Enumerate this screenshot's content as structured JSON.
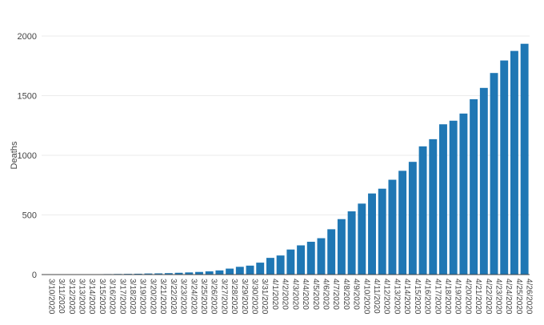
{
  "chart_data": {
    "type": "bar",
    "title": "",
    "xlabel": "",
    "ylabel": "Deaths",
    "ylim": [
      0,
      2000
    ],
    "yticks": [
      0,
      500,
      1000,
      1500,
      2000
    ],
    "grid": "horizontal",
    "bar_color": "#1f77b4",
    "categories": [
      "3/10/2020",
      "3/11/2020",
      "3/12/2020",
      "3/13/2020",
      "3/14/2020",
      "3/15/2020",
      "3/16/2020",
      "3/17/2020",
      "3/18/2020",
      "3/19/2020",
      "3/20/2020",
      "3/21/2020",
      "3/22/2020",
      "3/23/2020",
      "3/24/2020",
      "3/25/2020",
      "3/26/2020",
      "3/27/2020",
      "3/28/2020",
      "3/29/2020",
      "3/30/2020",
      "3/31/2020",
      "4/1/2020",
      "4/2/2020",
      "4/3/2020",
      "4/4/2020",
      "4/5/2020",
      "4/6/2020",
      "4/7/2020",
      "4/8/2020",
      "4/9/2020",
      "4/10/2020",
      "4/11/2020",
      "4/12/2020",
      "4/13/2020",
      "4/14/2020",
      "4/15/2020",
      "4/16/2020",
      "4/17/2020",
      "4/18/2020",
      "4/19/2020",
      "4/20/2020",
      "4/21/2020",
      "4/22/2020",
      "4/23/2020",
      "4/24/2020",
      "4/25/2020",
      "4/26/2020"
    ],
    "values": [
      1,
      1,
      1,
      2,
      2,
      3,
      4,
      5,
      6,
      7,
      9,
      10,
      12,
      15,
      18,
      22,
      27,
      35,
      50,
      65,
      75,
      100,
      140,
      160,
      210,
      245,
      275,
      305,
      380,
      465,
      530,
      595,
      680,
      720,
      795,
      870,
      945,
      1075,
      1135,
      1260,
      1290,
      1350,
      1470,
      1565,
      1690,
      1795,
      1875,
      1935
    ]
  }
}
